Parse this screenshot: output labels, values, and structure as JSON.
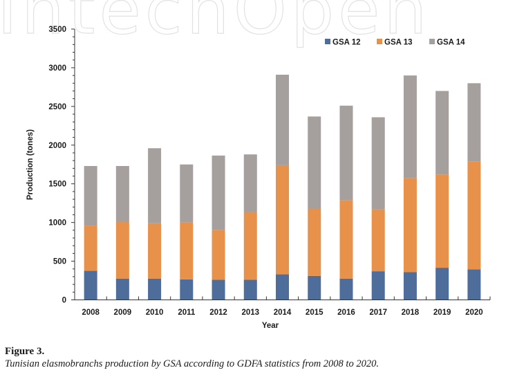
{
  "watermark": "IntechOpen",
  "caption": {
    "title": "Figure 3.",
    "text": "Tunisian elasmobranchs production by GSA according to GDFA statistics from 2008 to 2020."
  },
  "chart_data": {
    "type": "bar",
    "stacked": true,
    "title": "",
    "xlabel": "Year",
    "ylabel": "Production (tones)",
    "ylim": [
      0,
      3500
    ],
    "yticks": [
      0,
      500,
      1000,
      1500,
      2000,
      2500,
      3000,
      3500
    ],
    "yminor_step": 100,
    "grid": false,
    "legend_position": "top-right",
    "categories": [
      "2008",
      "2009",
      "2010",
      "2011",
      "2012",
      "2013",
      "2014",
      "2015",
      "2016",
      "2017",
      "2018",
      "2019",
      "2020"
    ],
    "series": [
      {
        "name": "GSA 12",
        "color": "#4f6d9a",
        "values": [
          375,
          275,
          275,
          265,
          260,
          260,
          330,
          310,
          275,
          370,
          360,
          415,
          395
        ]
      },
      {
        "name": "GSA 13",
        "color": "#e8914a",
        "values": [
          585,
          735,
          715,
          735,
          645,
          875,
          1410,
          870,
          1015,
          800,
          1215,
          1205,
          1395
        ]
      },
      {
        "name": "GSA 14",
        "color": "#a59f9d",
        "values": [
          770,
          720,
          970,
          750,
          960,
          745,
          1170,
          1190,
          1220,
          1190,
          1325,
          1080,
          1010
        ]
      }
    ]
  }
}
